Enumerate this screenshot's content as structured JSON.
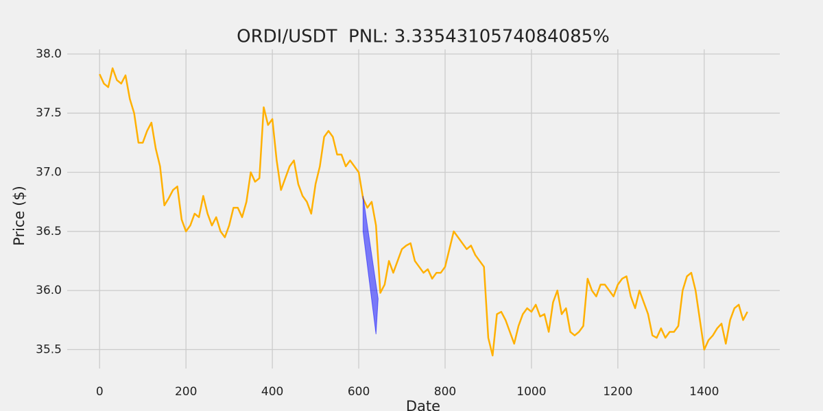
{
  "chart_data": {
    "type": "line",
    "title": "ORDI/USDT  PNL: 3.3354310574084085%",
    "xlabel": "Date",
    "ylabel": "Price ($)",
    "color": "#ffb000",
    "x": [
      0,
      10,
      20,
      30,
      40,
      50,
      60,
      70,
      80,
      90,
      100,
      110,
      120,
      130,
      140,
      150,
      160,
      170,
      180,
      190,
      200,
      210,
      220,
      230,
      240,
      250,
      260,
      270,
      280,
      290,
      300,
      310,
      320,
      330,
      340,
      350,
      360,
      370,
      380,
      390,
      400,
      410,
      420,
      430,
      440,
      450,
      460,
      470,
      480,
      490,
      500,
      510,
      520,
      530,
      540,
      550,
      560,
      570,
      580,
      590,
      600,
      610,
      620,
      630,
      640,
      650,
      660,
      670,
      680,
      690,
      700,
      710,
      720,
      730,
      740,
      750,
      760,
      770,
      780,
      790,
      800,
      810,
      820,
      830,
      840,
      850,
      860,
      870,
      880,
      890,
      900,
      910,
      920,
      930,
      940,
      950,
      960,
      970,
      980,
      990,
      1000,
      1010,
      1020,
      1030,
      1040,
      1050,
      1060,
      1070,
      1080,
      1090,
      1100,
      1110,
      1120,
      1130,
      1140,
      1150,
      1160,
      1170,
      1180,
      1190,
      1200,
      1210,
      1220,
      1230,
      1240,
      1250,
      1260,
      1270,
      1280,
      1290,
      1300,
      1310,
      1320,
      1330,
      1340,
      1350,
      1360,
      1370,
      1380,
      1390,
      1400,
      1410,
      1420,
      1430,
      1440,
      1450,
      1460,
      1470,
      1480,
      1490,
      1500
    ],
    "values": [
      37.83,
      37.75,
      37.72,
      37.88,
      37.78,
      37.75,
      37.82,
      37.62,
      37.5,
      37.25,
      37.25,
      37.35,
      37.42,
      37.2,
      37.05,
      36.72,
      36.78,
      36.85,
      36.88,
      36.6,
      36.5,
      36.55,
      36.65,
      36.62,
      36.8,
      36.65,
      36.55,
      36.62,
      36.5,
      36.45,
      36.55,
      36.7,
      36.7,
      36.62,
      36.75,
      37.0,
      36.92,
      36.95,
      37.55,
      37.4,
      37.45,
      37.1,
      36.85,
      36.95,
      37.05,
      37.1,
      36.9,
      36.8,
      36.75,
      36.65,
      36.9,
      37.05,
      37.3,
      37.35,
      37.3,
      37.15,
      37.15,
      37.05,
      37.1,
      37.05,
      37.0,
      36.78,
      36.7,
      36.75,
      36.55,
      35.98,
      36.05,
      36.25,
      36.15,
      36.25,
      36.35,
      36.38,
      36.4,
      36.25,
      36.2,
      36.15,
      36.18,
      36.1,
      36.15,
      36.15,
      36.2,
      36.35,
      36.5,
      36.45,
      36.4,
      36.35,
      36.38,
      36.3,
      36.25,
      36.2,
      35.6,
      35.45,
      35.8,
      35.82,
      35.75,
      35.65,
      35.55,
      35.7,
      35.8,
      35.85,
      35.82,
      35.88,
      35.78,
      35.8,
      35.65,
      35.9,
      36.0,
      35.8,
      35.85,
      35.65,
      35.62,
      35.65,
      35.7,
      36.1,
      36.0,
      35.95,
      36.05,
      36.05,
      36.0,
      35.95,
      36.05,
      36.1,
      36.12,
      35.95,
      35.85,
      36.0,
      35.9,
      35.8,
      35.62,
      35.6,
      35.68,
      35.6,
      35.65,
      35.65,
      35.7,
      36.0,
      36.12,
      36.15,
      36.0,
      35.75,
      35.5,
      35.58,
      35.62,
      35.68,
      35.72,
      35.55,
      35.75,
      35.85,
      35.88,
      35.75,
      35.82
    ],
    "trade": {
      "x": [
        610,
        645,
        640,
        610
      ],
      "values": [
        36.8,
        35.93,
        35.63,
        36.5
      ],
      "color": "#0000ff"
    },
    "xlim": [
      -75,
      1575
    ],
    "ylim": [
      35.34,
      38.04
    ],
    "xticks": [
      0,
      200,
      400,
      600,
      800,
      1000,
      1200,
      1400
    ],
    "yticks": [
      35.5,
      {
        "value": 36,
        "label": "36.0"
      },
      36.5,
      {
        "value": 37,
        "label": "37.0"
      },
      37.5,
      {
        "value": 38,
        "label": "38.0"
      }
    ],
    "grid": true
  }
}
